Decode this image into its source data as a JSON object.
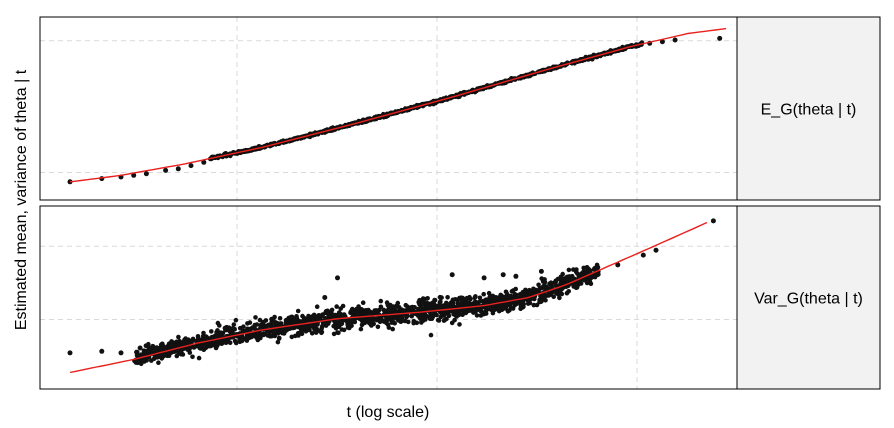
{
  "chart_data": {
    "type": "scatter",
    "ylabel": "Estimated mean, variance of theta | t",
    "xlabel": "t (log scale)",
    "x_scale": "log",
    "grid": true,
    "colors": {
      "points": "#111111",
      "line": "#e8211e",
      "strip_bg": "#f2f2f2",
      "grid": "#d9d9d9"
    },
    "facets": [
      {
        "strip": "E_G(theta | t)",
        "smooth": [
          [
            0.0,
            0.05
          ],
          [
            0.08,
            0.09
          ],
          [
            0.18,
            0.16
          ],
          [
            0.3,
            0.26
          ],
          [
            0.45,
            0.41
          ],
          [
            0.6,
            0.57
          ],
          [
            0.75,
            0.74
          ],
          [
            0.88,
            0.88
          ],
          [
            0.97,
            0.96
          ],
          [
            1.03,
            0.99
          ]
        ],
        "dense_from": 0.22,
        "dense_to": 0.9,
        "spread": 0.004,
        "outliers": [
          [
            0.0,
            0.05
          ],
          [
            0.05,
            0.07
          ],
          [
            0.08,
            0.08
          ],
          [
            0.1,
            0.09
          ],
          [
            0.12,
            0.1
          ],
          [
            0.15,
            0.12
          ],
          [
            0.17,
            0.13
          ],
          [
            0.19,
            0.15
          ],
          [
            0.21,
            0.17
          ],
          [
            0.91,
            0.9
          ],
          [
            0.93,
            0.91
          ],
          [
            0.95,
            0.92
          ],
          [
            1.02,
            0.93
          ]
        ]
      },
      {
        "strip": "Var_G(theta | t)",
        "smooth": [
          [
            0.0,
            0.04
          ],
          [
            0.1,
            0.12
          ],
          [
            0.2,
            0.22
          ],
          [
            0.3,
            0.3
          ],
          [
            0.42,
            0.37
          ],
          [
            0.55,
            0.41
          ],
          [
            0.65,
            0.45
          ],
          [
            0.72,
            0.5
          ],
          [
            0.78,
            0.58
          ],
          [
            0.85,
            0.7
          ],
          [
            0.92,
            0.82
          ],
          [
            1.0,
            0.96
          ]
        ],
        "dense_from": 0.1,
        "dense_to": 0.83,
        "spread": 0.025,
        "outliers": [
          [
            0.0,
            0.16
          ],
          [
            0.05,
            0.17
          ],
          [
            0.08,
            0.16
          ],
          [
            0.11,
            0.19
          ],
          [
            0.13,
            0.2
          ],
          [
            0.16,
            0.22
          ],
          [
            0.18,
            0.24
          ],
          [
            0.4,
            0.5
          ],
          [
            0.42,
            0.62
          ],
          [
            0.6,
            0.64
          ],
          [
            0.65,
            0.62
          ],
          [
            0.68,
            0.64
          ],
          [
            0.7,
            0.63
          ],
          [
            0.74,
            0.66
          ],
          [
            0.86,
            0.7
          ],
          [
            0.9,
            0.76
          ],
          [
            0.92,
            0.79
          ],
          [
            1.01,
            0.97
          ]
        ]
      }
    ]
  }
}
